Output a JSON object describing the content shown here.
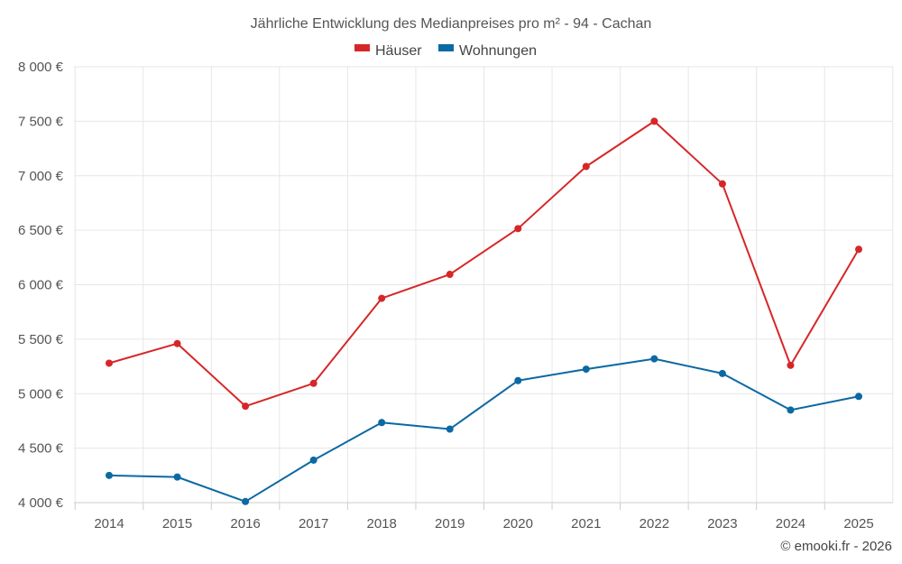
{
  "chart_data": {
    "type": "line",
    "title": "Jährliche Entwicklung des Medianpreises pro m² - 94 - Cachan",
    "categories": [
      "2014",
      "2015",
      "2016",
      "2017",
      "2018",
      "2019",
      "2020",
      "2021",
      "2022",
      "2023",
      "2024",
      "2025"
    ],
    "series": [
      {
        "name": "Häuser",
        "color": "#d62728",
        "values": [
          5280,
          5460,
          4885,
          5095,
          5875,
          6095,
          6515,
          7085,
          7500,
          6925,
          5260,
          6325
        ]
      },
      {
        "name": "Wohnungen",
        "color": "#0b69a3",
        "values": [
          4250,
          4235,
          4010,
          4390,
          4735,
          4675,
          5120,
          5225,
          5320,
          5185,
          4850,
          4975
        ]
      }
    ],
    "ylim": [
      4000,
      8000
    ],
    "yticks": [
      4000,
      4500,
      5000,
      5500,
      6000,
      6500,
      7000,
      7500,
      8000
    ],
    "ytick_labels": [
      "4 000 €",
      "4 500 €",
      "5 000 €",
      "5 500 €",
      "6 000 €",
      "6 500 €",
      "7 000 €",
      "7 500 €",
      "8 000 €"
    ],
    "xlabel": "",
    "ylabel": "",
    "legend_position": "top-center",
    "grid": true
  },
  "credit": "© emooki.fr - 2026"
}
